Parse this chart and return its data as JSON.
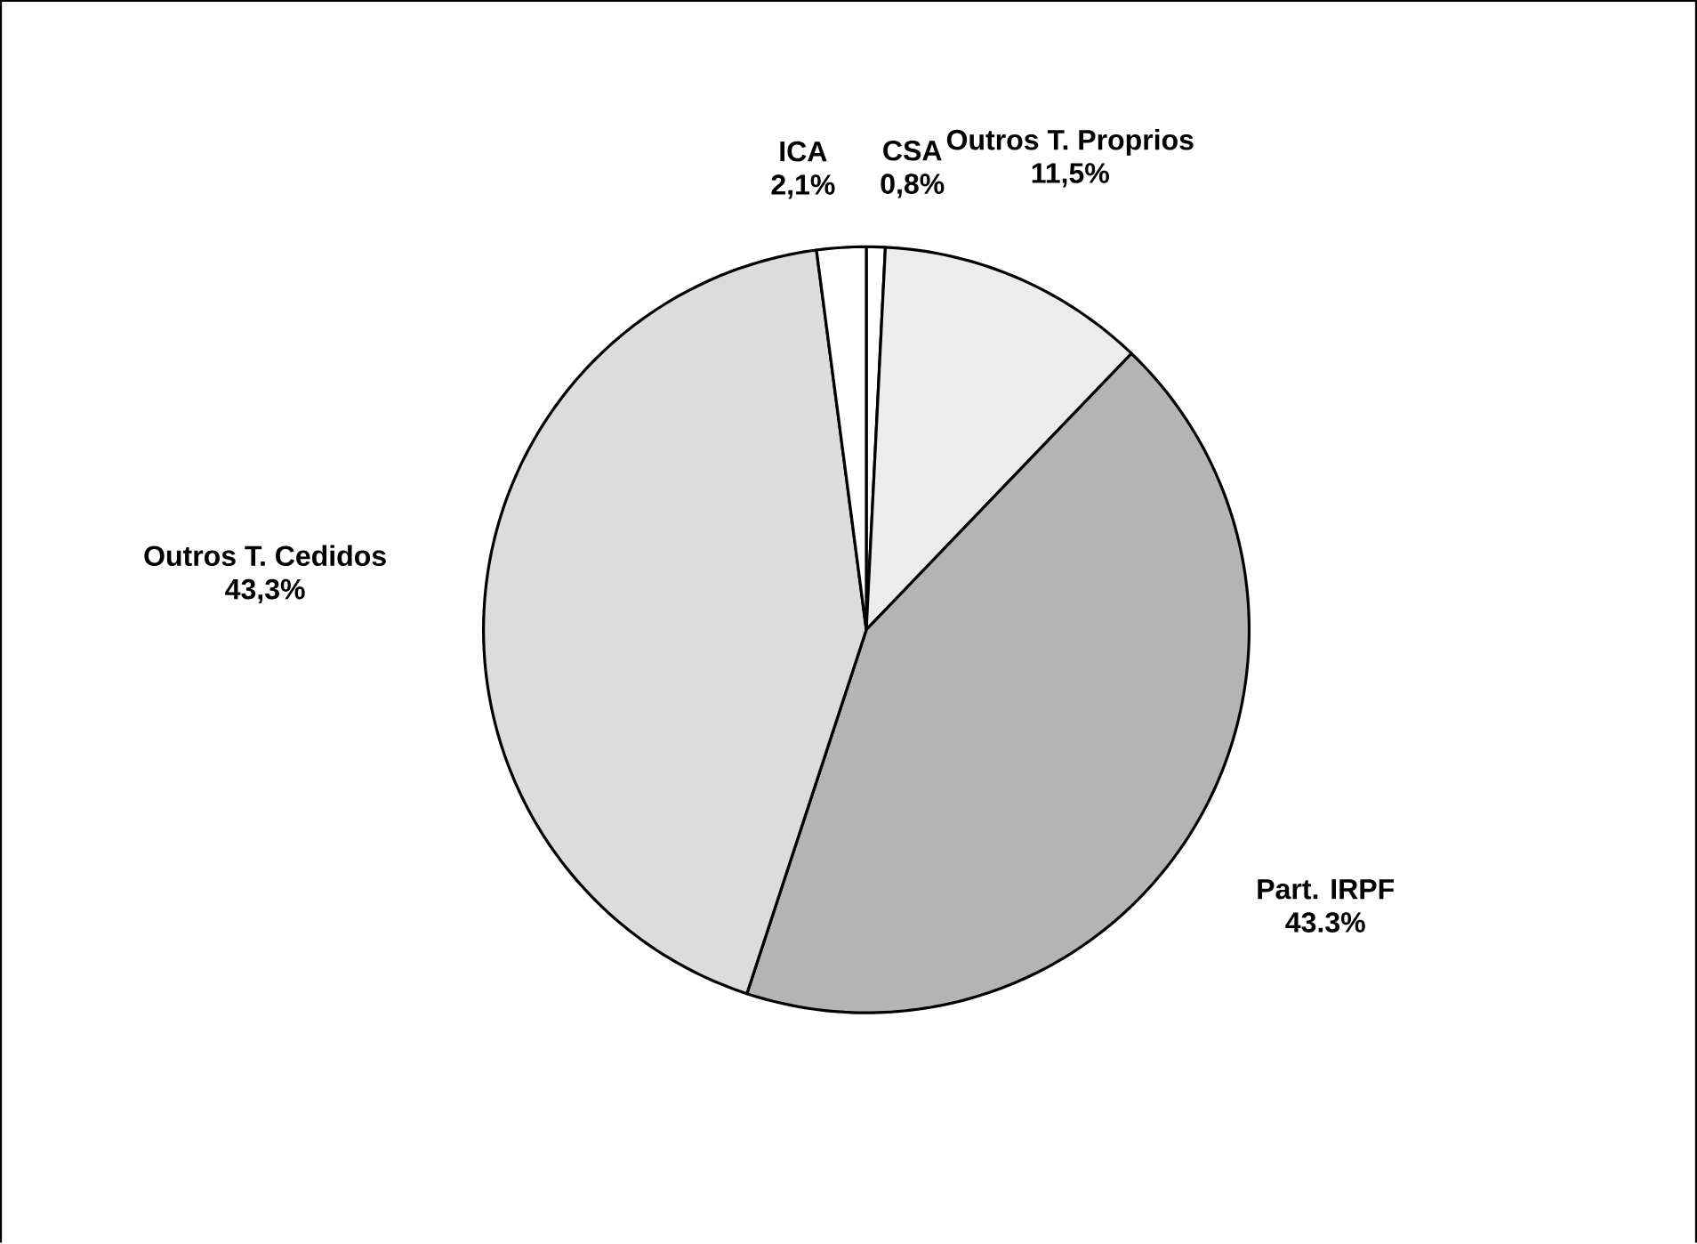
{
  "chart_data": {
    "type": "pie",
    "categories": [
      "CSA",
      "Outros T. Proprios",
      "Part. IRPF",
      "Outros T. Cedidos",
      "ICA"
    ],
    "values": [
      0.8,
      11.5,
      43.3,
      43.3,
      2.1
    ],
    "value_labels": [
      "0,8%",
      "11,5%",
      "43.3%",
      "43,3%",
      "2,1%"
    ],
    "colors": [
      "#ffffff",
      "#ececec",
      "#b4b4b4",
      "#dcdcdc",
      "#ffffff"
    ]
  }
}
